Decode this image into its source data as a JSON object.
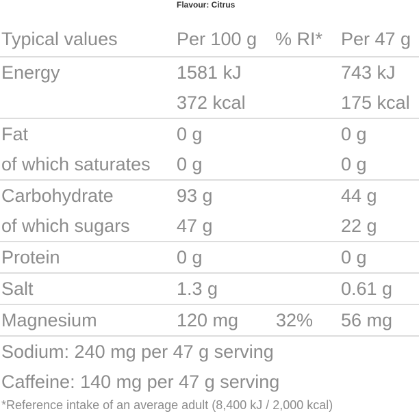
{
  "flavour": "Flavour: Citrus",
  "header": {
    "label": "Typical values",
    "per100": "Per 100 g",
    "ri": "% RI*",
    "per47": "Per 47 g"
  },
  "rows": [
    {
      "label": "Energy",
      "per100": "1581 kJ",
      "ri": "",
      "per47": "743 kJ"
    },
    {
      "label": "",
      "per100": "372 kcal",
      "ri": "",
      "per47": "175 kcal"
    },
    {
      "label": "Fat",
      "per100": "0 g",
      "ri": "",
      "per47": "0 g"
    },
    {
      "label": "of which saturates",
      "per100": "0 g",
      "ri": "",
      "per47": "0 g"
    },
    {
      "label": "Carbohydrate",
      "per100": "93 g",
      "ri": "",
      "per47": "44 g"
    },
    {
      "label": "of which sugars",
      "per100": "47 g",
      "ri": "",
      "per47": "22 g"
    },
    {
      "label": "Protein",
      "per100": "0 g",
      "ri": "",
      "per47": "0 g"
    },
    {
      "label": "Salt",
      "per100": "1.3 g",
      "ri": "",
      "per47": "0.61 g"
    },
    {
      "label": "Magnesium",
      "per100": "120 mg",
      "ri": "32%",
      "per47": "56 mg"
    }
  ],
  "notes": [
    "Sodium: 240 mg per 47 g serving",
    "Caffeine: 140 mg per 47 g serving"
  ],
  "footnote": "*Reference intake of an average adult (8,400 kJ / 2,000 kcal)",
  "colors": {
    "text": "#8c8c8c",
    "rule": "#dddddd"
  }
}
